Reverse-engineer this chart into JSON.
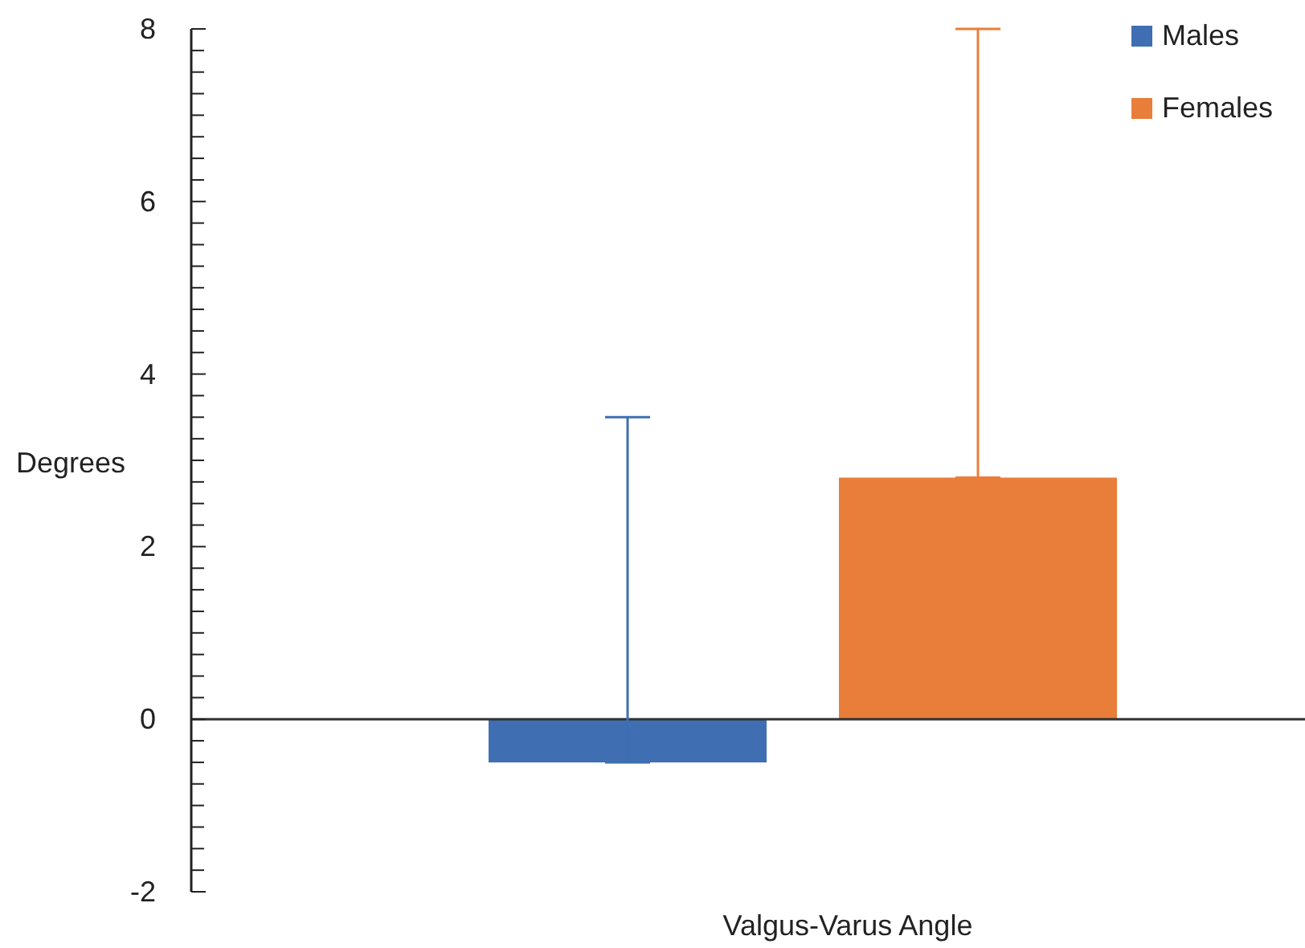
{
  "chart_data": {
    "type": "bar",
    "xlabel": "Valgus-Varus Angle",
    "ylabel": "Degrees",
    "categories": [
      null
    ],
    "series": [
      {
        "name": "Males",
        "color": "#3f6fb2",
        "values": [
          -0.5
        ],
        "errors": [
          [
            -0.5,
            3.5
          ]
        ]
      },
      {
        "name": "Females",
        "color": "#e97e3b",
        "values": [
          2.8
        ],
        "errors": [
          [
            2.8,
            8
          ]
        ]
      }
    ],
    "ylim": [
      -2,
      8
    ],
    "yticks": [
      -2,
      {
        "value": -1.75,
        "label": null
      },
      {
        "value": -1.5,
        "label": null
      },
      {
        "value": -1.25,
        "label": null
      },
      {
        "value": -1,
        "label": null
      },
      {
        "value": -0.75,
        "label": null
      },
      {
        "value": -0.5,
        "label": null
      },
      {
        "value": -0.25,
        "label": null
      },
      0,
      {
        "value": 0.25,
        "label": null
      },
      {
        "value": 0.5,
        "label": null
      },
      {
        "value": 0.75,
        "label": null
      },
      {
        "value": 1,
        "label": null
      },
      {
        "value": 1.25,
        "label": null
      },
      {
        "value": 1.5,
        "label": null
      },
      {
        "value": 1.75,
        "label": null
      },
      2,
      {
        "value": 2.25,
        "label": null
      },
      {
        "value": 2.5,
        "label": null
      },
      {
        "value": 2.75,
        "label": null
      },
      {
        "value": 3,
        "label": null
      },
      {
        "value": 3.25,
        "label": null
      },
      {
        "value": 3.5,
        "label": null
      },
      {
        "value": 3.75,
        "label": null
      },
      4,
      {
        "value": 4.25,
        "label": null
      },
      {
        "value": 4.5,
        "label": null
      },
      {
        "value": 4.75,
        "label": null
      },
      {
        "value": 5,
        "label": null
      },
      {
        "value": 5.25,
        "label": null
      },
      {
        "value": 5.5,
        "label": null
      },
      {
        "value": 5.75,
        "label": null
      },
      6,
      {
        "value": 6.25,
        "label": null
      },
      {
        "value": 6.5,
        "label": null
      },
      {
        "value": 6.75,
        "label": null
      },
      {
        "value": 7,
        "label": null
      },
      {
        "value": 7.25,
        "label": null
      },
      {
        "value": 7.5,
        "label": null
      },
      {
        "value": 7.75,
        "label": null
      },
      8
    ],
    "legend": "top right"
  }
}
